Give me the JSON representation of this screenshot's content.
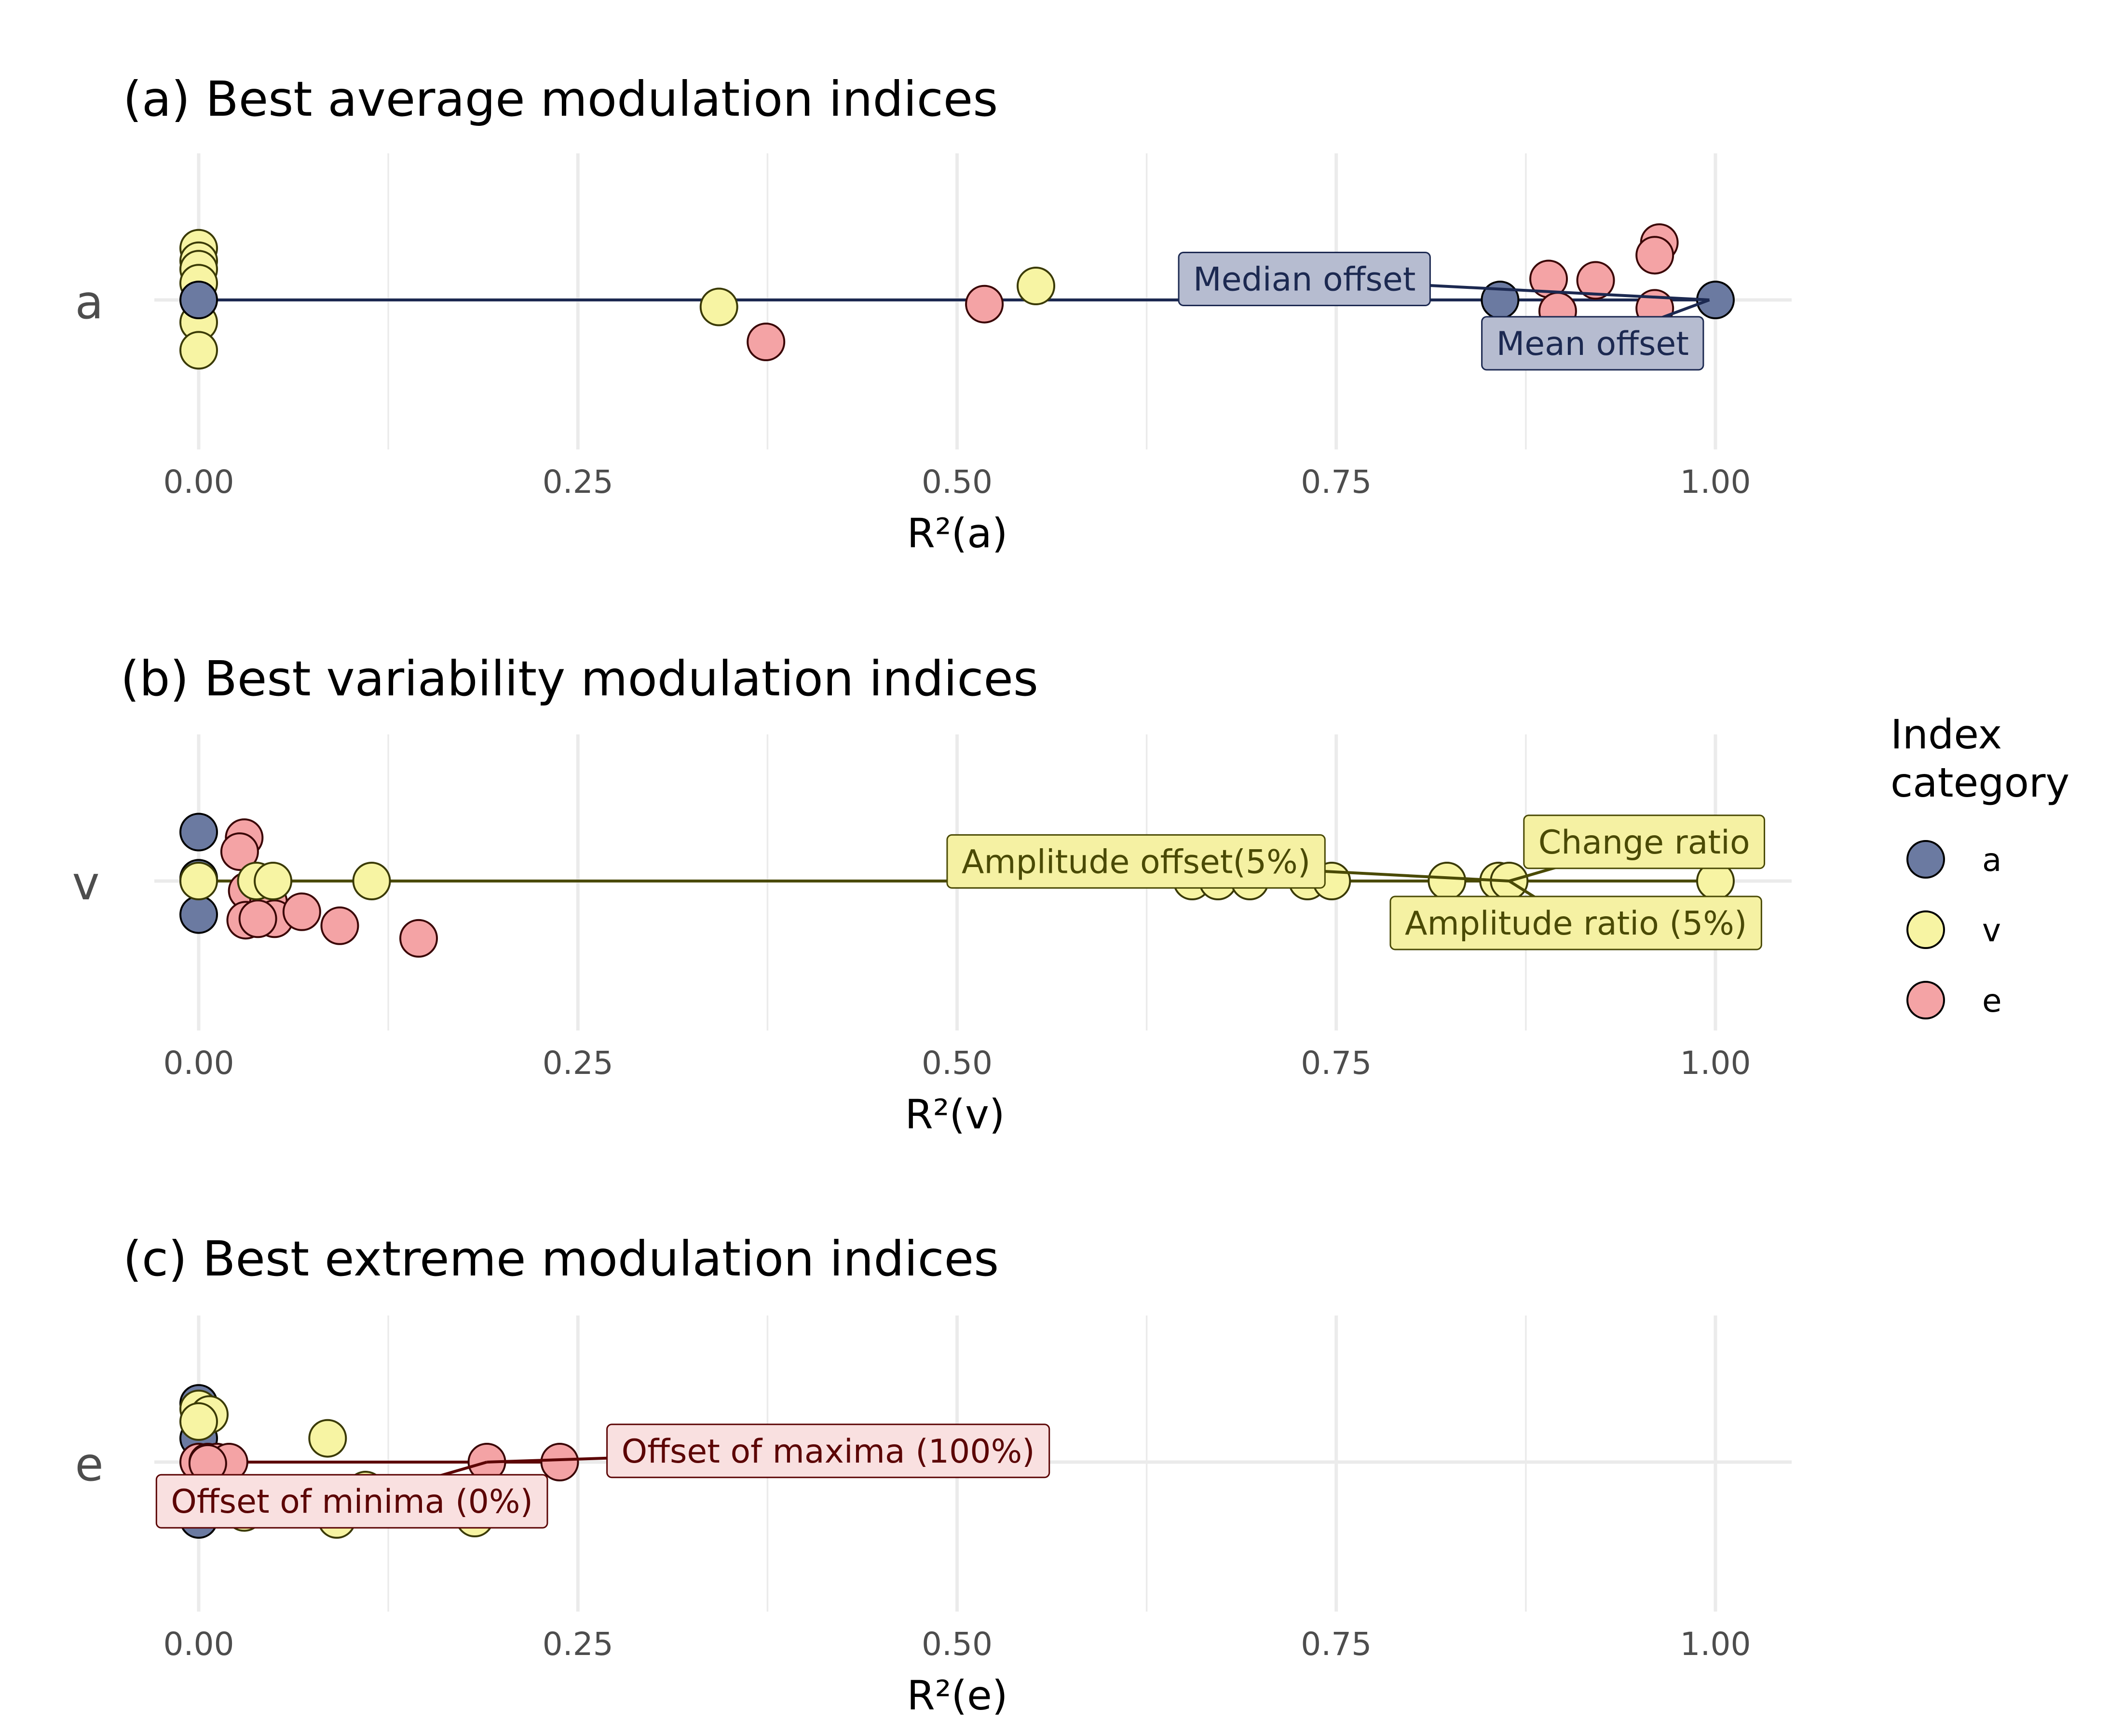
{
  "legend": {
    "title_line1": "Index",
    "title_line2": "category",
    "items": [
      {
        "label": "a",
        "fill": "#6b7aa1"
      },
      {
        "label": "v",
        "fill": "#f7f4a3"
      },
      {
        "label": "e",
        "fill": "#f4a3a5"
      }
    ]
  },
  "colors": {
    "a": {
      "fill": "#6b7aa1",
      "line": "#1c2951",
      "label_bg": "#b6bcd0",
      "text": "#1c2951"
    },
    "v": {
      "fill": "#f7f4a3",
      "line": "#4a4a05",
      "label_bg": "#f5f1a3",
      "text": "#4a4a05"
    },
    "e": {
      "fill": "#f4a3a5",
      "line": "#5c0505",
      "label_bg": "#f9e0e0",
      "text": "#5c0505"
    },
    "grid": "#ebebeb"
  },
  "chart_data": [
    {
      "type": "scatter",
      "title": "(a) Best average modulation indices",
      "xlabel": "R²(a)",
      "ylabel": "a",
      "xlim": [
        0,
        1
      ],
      "xticks": [
        "0.00",
        "0.25",
        "0.50",
        "0.75",
        "1.00"
      ],
      "grid": true,
      "points": [
        {
          "x": 0.0,
          "y": 0.37,
          "cat": "v"
        },
        {
          "x": 0.0,
          "y": 0.28,
          "cat": "v"
        },
        {
          "x": 0.0,
          "y": 0.22,
          "cat": "v"
        },
        {
          "x": 0.0,
          "y": 0.12,
          "cat": "v"
        },
        {
          "x": 0.0,
          "y": -0.16,
          "cat": "v"
        },
        {
          "x": 0.0,
          "y": -0.36,
          "cat": "v"
        },
        {
          "x": 0.0,
          "y": 0.0,
          "cat": "a"
        },
        {
          "x": 0.343,
          "y": -0.05,
          "cat": "v"
        },
        {
          "x": 0.552,
          "y": 0.1,
          "cat": "v"
        },
        {
          "x": 0.374,
          "y": -0.3,
          "cat": "e"
        },
        {
          "x": 0.518,
          "y": -0.03,
          "cat": "e"
        },
        {
          "x": 0.858,
          "y": 0.0,
          "cat": "a"
        },
        {
          "x": 1.0,
          "y": 0.0,
          "cat": "a"
        },
        {
          "x": 0.89,
          "y": 0.15,
          "cat": "e"
        },
        {
          "x": 0.921,
          "y": 0.14,
          "cat": "e"
        },
        {
          "x": 0.963,
          "y": 0.41,
          "cat": "e"
        },
        {
          "x": 0.96,
          "y": 0.32,
          "cat": "e"
        },
        {
          "x": 0.896,
          "y": -0.08,
          "cat": "e"
        },
        {
          "x": 0.96,
          "y": -0.06,
          "cat": "e"
        }
      ],
      "lines": [
        {
          "from": 0.0,
          "to": 1.0,
          "cat": "a"
        }
      ],
      "annotations": [
        {
          "text": "Median offset",
          "anchor_x": 0.996,
          "anchor_y": 0.0,
          "label_x": 0.729,
          "label_y": 0.15,
          "cat": "a"
        },
        {
          "text": "Mean offset",
          "anchor_x": 0.996,
          "anchor_y": 0.0,
          "label_x": 0.919,
          "label_y": -0.31,
          "cat": "a"
        }
      ]
    },
    {
      "type": "scatter",
      "title": "(b) Best variability modulation indices",
      "xlabel": "R²(v)",
      "ylabel": "v",
      "xlim": [
        0,
        1
      ],
      "xticks": [
        "0.00",
        "0.25",
        "0.50",
        "0.75",
        "1.00"
      ],
      "grid": true,
      "points": [
        {
          "x": 0.0,
          "y": 0.35,
          "cat": "a"
        },
        {
          "x": 0.0,
          "y": 0.02,
          "cat": "a"
        },
        {
          "x": 0.0,
          "y": -0.24,
          "cat": "a"
        },
        {
          "x": 0.03,
          "y": 0.31,
          "cat": "e"
        },
        {
          "x": 0.027,
          "y": 0.21,
          "cat": "e"
        },
        {
          "x": 0.032,
          "y": -0.07,
          "cat": "e"
        },
        {
          "x": 0.046,
          "y": -0.15,
          "cat": "e"
        },
        {
          "x": 0.05,
          "y": -0.27,
          "cat": "e"
        },
        {
          "x": 0.031,
          "y": -0.28,
          "cat": "e"
        },
        {
          "x": 0.039,
          "y": -0.27,
          "cat": "e"
        },
        {
          "x": 0.068,
          "y": -0.22,
          "cat": "e"
        },
        {
          "x": 0.093,
          "y": -0.32,
          "cat": "e"
        },
        {
          "x": 0.145,
          "y": -0.41,
          "cat": "e"
        },
        {
          "x": 0.0,
          "y": 0.0,
          "cat": "v"
        },
        {
          "x": 0.038,
          "y": 0.0,
          "cat": "v"
        },
        {
          "x": 0.049,
          "y": 0.0,
          "cat": "v"
        },
        {
          "x": 0.114,
          "y": 0.0,
          "cat": "v"
        },
        {
          "x": 0.655,
          "y": 0.0,
          "cat": "v"
        },
        {
          "x": 0.672,
          "y": 0.0,
          "cat": "v"
        },
        {
          "x": 0.693,
          "y": 0.0,
          "cat": "v"
        },
        {
          "x": 0.731,
          "y": 0.0,
          "cat": "v"
        },
        {
          "x": 0.747,
          "y": 0.0,
          "cat": "v"
        },
        {
          "x": 0.823,
          "y": 0.0,
          "cat": "v"
        },
        {
          "x": 0.857,
          "y": 0.0,
          "cat": "v"
        },
        {
          "x": 0.864,
          "y": 0.0,
          "cat": "v"
        },
        {
          "x": 1.0,
          "y": 0.0,
          "cat": "v"
        }
      ],
      "lines": [
        {
          "from": 0.0,
          "to": 1.0,
          "cat": "v"
        }
      ],
      "annotations": [
        {
          "text": "Amplitude offset(5%)",
          "anchor_x": 0.864,
          "anchor_y": 0.0,
          "label_x": 0.618,
          "label_y": 0.14,
          "cat": "v"
        },
        {
          "text": "Change ratio",
          "anchor_x": 0.864,
          "anchor_y": 0.0,
          "label_x": 0.953,
          "label_y": 0.28,
          "cat": "v"
        },
        {
          "text": "Amplitude ratio (5%)",
          "anchor_x": 0.864,
          "anchor_y": 0.0,
          "label_x": 0.908,
          "label_y": -0.3,
          "cat": "v"
        }
      ]
    },
    {
      "type": "scatter",
      "title": "(c) Best extreme modulation indices",
      "xlabel": "R²(e)",
      "ylabel": "e",
      "xlim": [
        0,
        1
      ],
      "xticks": [
        "0.00",
        "0.25",
        "0.50",
        "0.75",
        "1.00"
      ],
      "grid": true,
      "points": [
        {
          "x": 0.0,
          "y": 0.42,
          "cat": "a"
        },
        {
          "x": 0.0,
          "y": 0.17,
          "cat": "a"
        },
        {
          "x": 0.0,
          "y": -0.41,
          "cat": "a"
        },
        {
          "x": 0.0,
          "y": 0.38,
          "cat": "v"
        },
        {
          "x": 0.007,
          "y": 0.34,
          "cat": "v"
        },
        {
          "x": 0.0,
          "y": 0.29,
          "cat": "v"
        },
        {
          "x": 0.085,
          "y": 0.17,
          "cat": "v"
        },
        {
          "x": 0.03,
          "y": -0.36,
          "cat": "v"
        },
        {
          "x": 0.091,
          "y": -0.41,
          "cat": "v"
        },
        {
          "x": 0.11,
          "y": -0.2,
          "cat": "v"
        },
        {
          "x": 0.182,
          "y": -0.4,
          "cat": "v"
        },
        {
          "x": 0.0,
          "y": 0.0,
          "cat": "e"
        },
        {
          "x": 0.006,
          "y": 0.0,
          "cat": "e"
        },
        {
          "x": 0.012,
          "y": 0.0,
          "cat": "e"
        },
        {
          "x": 0.02,
          "y": 0.0,
          "cat": "e"
        },
        {
          "x": 0.006,
          "y": -0.01,
          "cat": "e"
        },
        {
          "x": 0.19,
          "y": 0.0,
          "cat": "e"
        },
        {
          "x": 0.238,
          "y": 0.0,
          "cat": "e"
        }
      ],
      "lines": [
        {
          "from": 0.0,
          "to": 0.238,
          "cat": "e"
        }
      ],
      "annotations": [
        {
          "text": "Offset of maxima (100%)",
          "anchor_x": 0.19,
          "anchor_y": 0.0,
          "label_x": 0.415,
          "label_y": 0.08,
          "cat": "e"
        },
        {
          "text": "Offset of minima (0%)",
          "anchor_x": 0.19,
          "anchor_y": 0.0,
          "label_x": 0.101,
          "label_y": -0.28,
          "cat": "e"
        }
      ]
    }
  ]
}
